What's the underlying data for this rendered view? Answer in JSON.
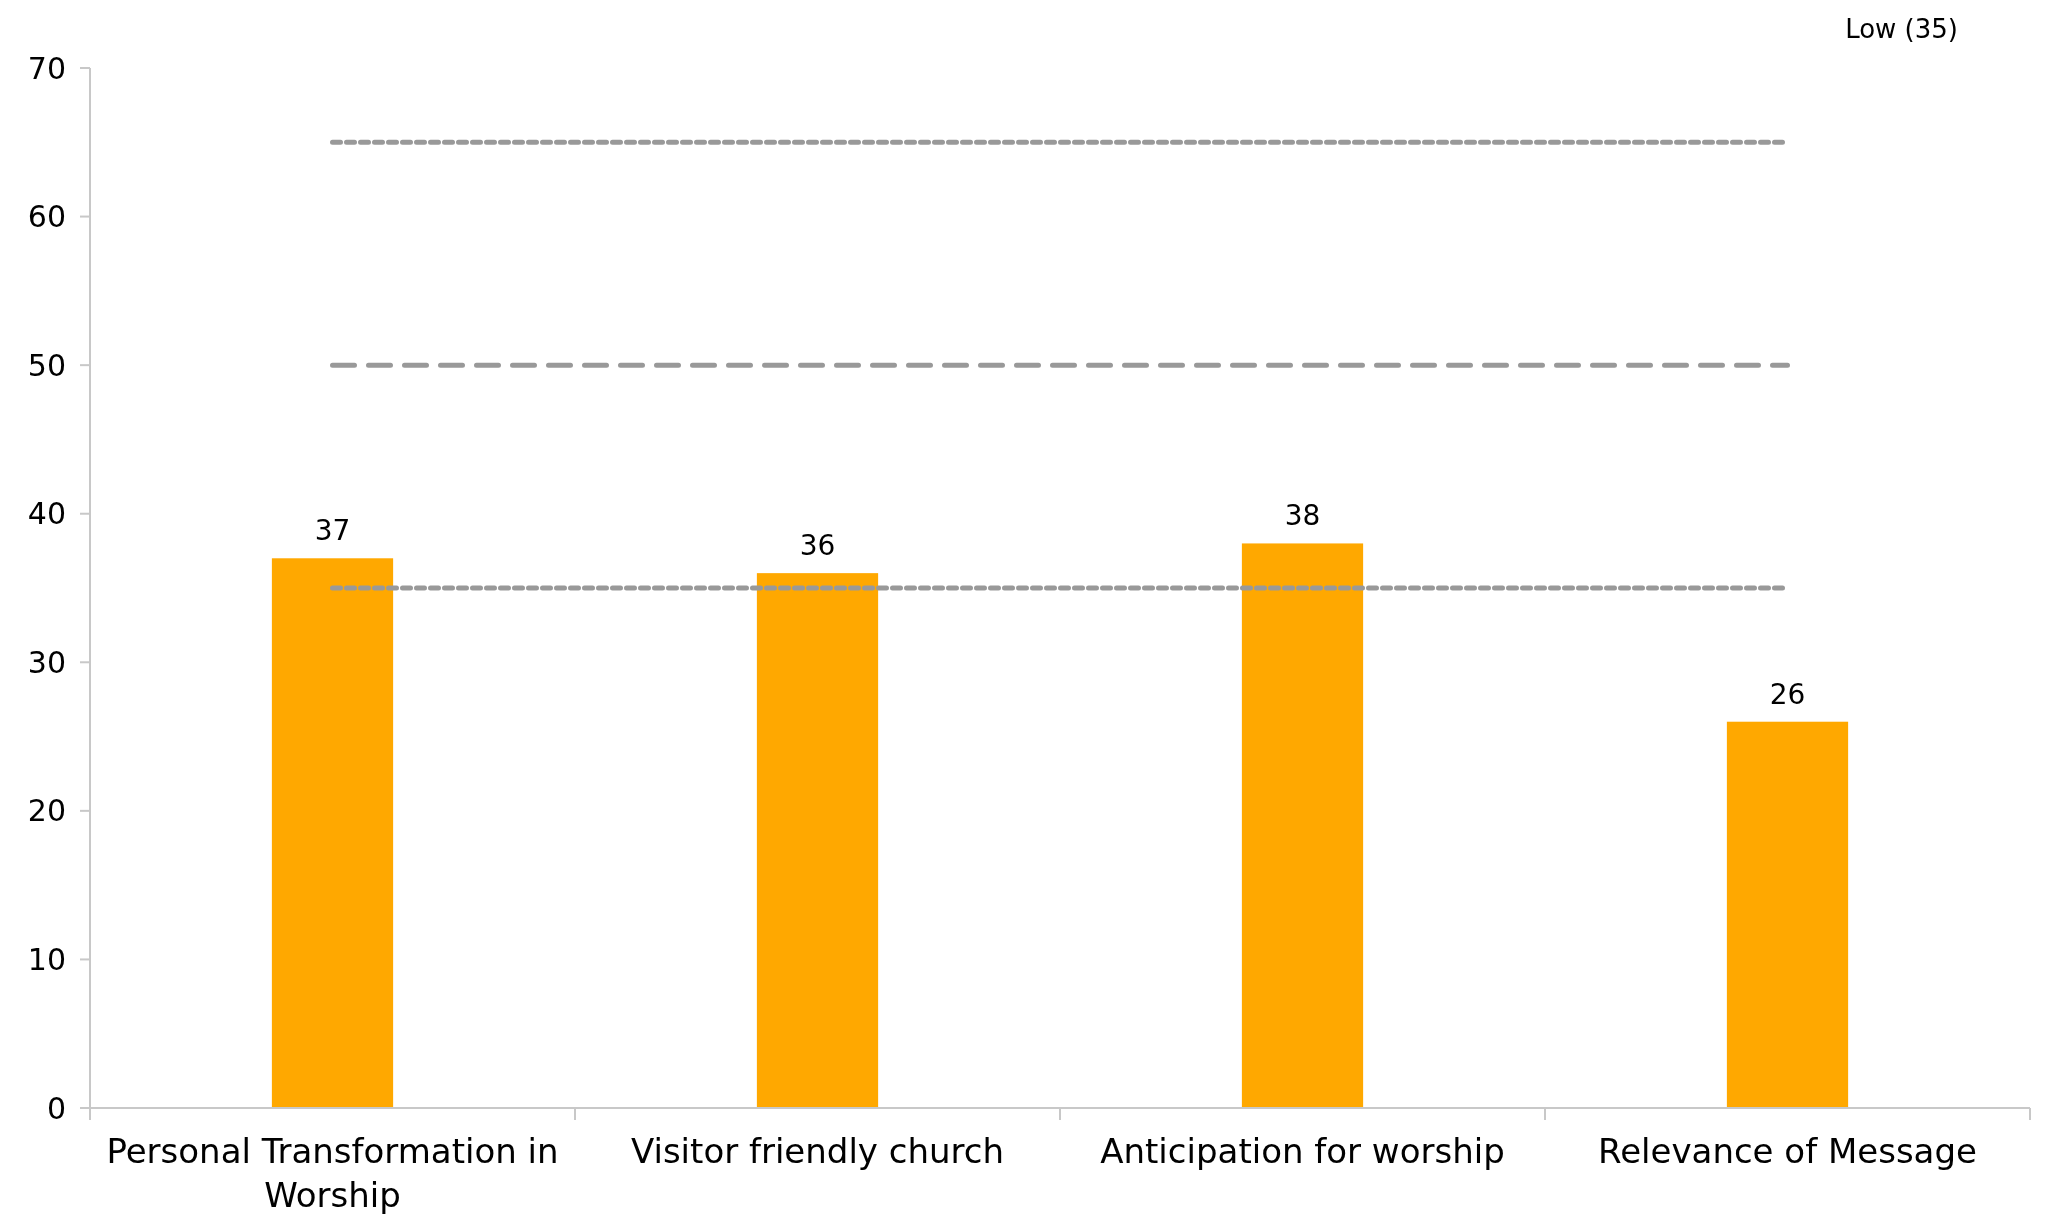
{
  "chart_data": {
    "type": "bar",
    "categories": [
      "Personal Transformation in Worship",
      "Visitor friendly church",
      "Anticipation for worship",
      "Relevance of Message"
    ],
    "values": [
      37,
      36,
      38,
      26
    ],
    "color": "#ffa800",
    "data_labels": true,
    "ylim": [
      0,
      70
    ],
    "yticks": [
      0,
      10,
      20,
      30,
      40,
      50,
      60,
      70
    ],
    "grid": false,
    "ref_lines": [
      {
        "axis": "y",
        "value": 65,
        "color": "#999999",
        "line_style": "dotted"
      },
      {
        "axis": "y",
        "value": 50,
        "color": "#999999",
        "line_style": "dashed"
      },
      {
        "axis": "y",
        "value": 35,
        "color": "#999999",
        "line_style": "dotted"
      }
    ],
    "annotations": [
      "Low (35)"
    ]
  }
}
